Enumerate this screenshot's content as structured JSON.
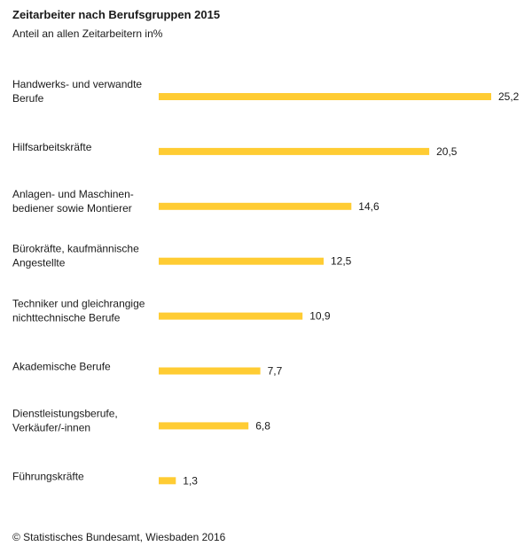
{
  "chart_data": {
    "type": "bar",
    "orientation": "horizontal",
    "title": "Zeitarbeiter nach Berufsgruppen 2015",
    "subtitle": "Anteil an allen Zeitarbeitern in%",
    "categories": [
      [
        "Handwerks- und verwandte",
        "Berufe"
      ],
      [
        "Hilfsarbeitskräfte"
      ],
      [
        "Anlagen- und Maschinen-",
        "bediener sowie Montierer"
      ],
      [
        "Bürokräfte, kaufmännische",
        "Angestellte"
      ],
      [
        "Techniker und gleichrangige",
        "nichttechnische Berufe"
      ],
      [
        "Akademische Berufe"
      ],
      [
        "Dienstleistungsberufe,",
        "Verkäufer/-innen"
      ],
      [
        "Führungskräfte"
      ]
    ],
    "values": [
      25.2,
      20.5,
      14.6,
      12.5,
      10.9,
      7.7,
      6.8,
      1.3
    ],
    "value_labels": [
      "25,2",
      "20,5",
      "14,6",
      "12,5",
      "10,9",
      "7,7",
      "6,8",
      "1,3"
    ],
    "xlim": [
      0,
      25.2
    ],
    "grid": false,
    "legend": "none",
    "bar_color": "#FFCC33",
    "source": "© Statistisches Bundesamt, Wiesbaden 2016"
  }
}
